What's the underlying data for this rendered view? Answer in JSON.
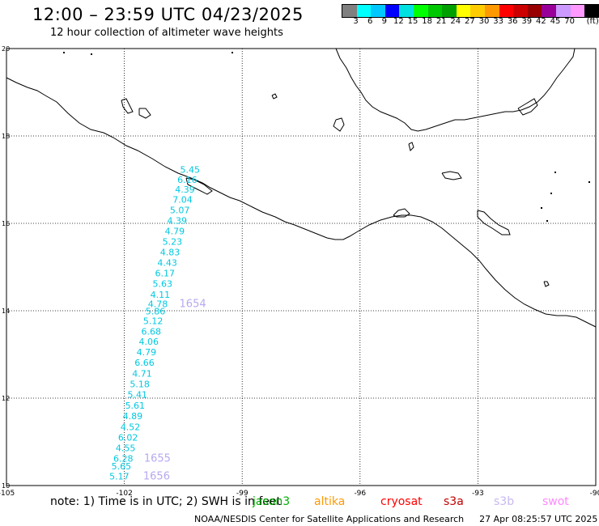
{
  "header": {
    "title": "12:00 – 23:59 UTC 04/23/2025",
    "subtitle": "12 hour collection of altimeter wave heights"
  },
  "color_scale": {
    "unit": "(ft)",
    "swatches": [
      "#808080",
      "#00ffff",
      "#00c8ff",
      "#0000ff",
      "#00e0e0",
      "#00ff00",
      "#00c800",
      "#00a000",
      "#ffff00",
      "#ffcc00",
      "#ff9900",
      "#ff0000",
      "#cc0000",
      "#990000",
      "#990099",
      "#cc99ff",
      "#ff99ff",
      "#000000"
    ],
    "labels": [
      "3",
      "6",
      "9",
      "12",
      "15",
      "18",
      "21",
      "24",
      "27",
      "30",
      "33",
      "36",
      "39",
      "42",
      "45",
      "70"
    ]
  },
  "map": {
    "lon_labels": [
      "-105",
      "-102",
      "-99",
      "-96",
      "-93",
      "-90"
    ],
    "lat_labels": [
      "20",
      "18",
      "16",
      "14",
      "12",
      "10"
    ],
    "track_color": "#00c8e0",
    "annotation_color": "#b8a8f0",
    "wave_heights": [
      {
        "lon": -100.58,
        "lat": 17.16,
        "value": "5.45"
      },
      {
        "lon": -100.65,
        "lat": 16.93,
        "value": "6.16"
      },
      {
        "lon": -100.71,
        "lat": 16.7,
        "value": "4.39"
      },
      {
        "lon": -100.77,
        "lat": 16.47,
        "value": "7.04"
      },
      {
        "lon": -100.84,
        "lat": 16.23,
        "value": "5.07"
      },
      {
        "lon": -100.91,
        "lat": 15.99,
        "value": "4.39"
      },
      {
        "lon": -100.97,
        "lat": 15.75,
        "value": "4.79"
      },
      {
        "lon": -101.03,
        "lat": 15.51,
        "value": "5.23"
      },
      {
        "lon": -101.09,
        "lat": 15.27,
        "value": "4.83"
      },
      {
        "lon": -101.16,
        "lat": 15.03,
        "value": "4.43"
      },
      {
        "lon": -101.22,
        "lat": 14.79,
        "value": "6.17"
      },
      {
        "lon": -101.28,
        "lat": 14.55,
        "value": "5.63"
      },
      {
        "lon": -101.34,
        "lat": 14.3,
        "value": "4.11"
      },
      {
        "lon": -101.4,
        "lat": 14.08,
        "value": "4.78"
      },
      {
        "lon": -101.46,
        "lat": 13.92,
        "value": "5.86"
      },
      {
        "lon": -101.52,
        "lat": 13.69,
        "value": "5.12"
      },
      {
        "lon": -101.57,
        "lat": 13.45,
        "value": "6.68"
      },
      {
        "lon": -101.63,
        "lat": 13.22,
        "value": "4.06"
      },
      {
        "lon": -101.69,
        "lat": 12.98,
        "value": "4.79"
      },
      {
        "lon": -101.74,
        "lat": 12.74,
        "value": "6.66"
      },
      {
        "lon": -101.8,
        "lat": 12.49,
        "value": "4.71"
      },
      {
        "lon": -101.86,
        "lat": 12.25,
        "value": "5.18"
      },
      {
        "lon": -101.92,
        "lat": 12.01,
        "value": "5.41"
      },
      {
        "lon": -101.98,
        "lat": 11.76,
        "value": "5.61"
      },
      {
        "lon": -102.04,
        "lat": 11.52,
        "value": "4.89"
      },
      {
        "lon": -102.1,
        "lat": 11.27,
        "value": "4.52"
      },
      {
        "lon": -102.16,
        "lat": 11.03,
        "value": "6.02"
      },
      {
        "lon": -102.22,
        "lat": 10.79,
        "value": "4.55"
      },
      {
        "lon": -102.28,
        "lat": 10.55,
        "value": "6.28"
      },
      {
        "lon": -102.33,
        "lat": 10.37,
        "value": "5.65"
      },
      {
        "lon": -102.38,
        "lat": 10.14,
        "value": "5.17"
      }
    ],
    "time_labels": [
      {
        "lon": -100.6,
        "lat": 14.08,
        "value": "1654"
      },
      {
        "lon": -101.5,
        "lat": 10.55,
        "value": "1655"
      },
      {
        "lon": -101.52,
        "lat": 10.14,
        "value": "1656"
      }
    ]
  },
  "footer": {
    "note": "note: 1) Time is in UTC; 2) SWH is in feet",
    "satellites": [
      {
        "name": "jason3",
        "color": "#00b000"
      },
      {
        "name": "altika",
        "color": "#ff9900"
      },
      {
        "name": "cryosat",
        "color": "#ff0000"
      },
      {
        "name": "s3a",
        "color": "#c00000"
      },
      {
        "name": "s3b",
        "color": "#c8b8f0"
      },
      {
        "name": "swot",
        "color": "#ff88ff"
      }
    ],
    "credit": "NOAA/NESDIS Center for Satellite Applications and Research",
    "timestamp": "27 Apr 08:25:57 UTC 2025"
  }
}
